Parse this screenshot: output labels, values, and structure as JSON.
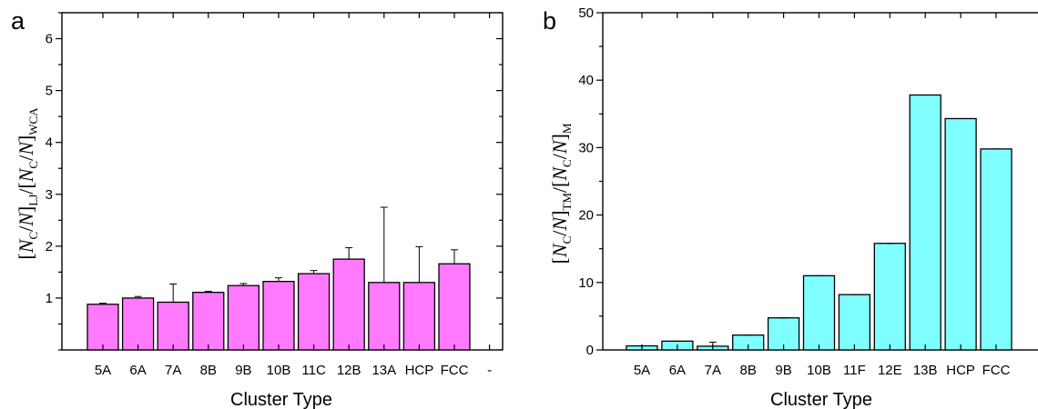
{
  "chart_data": [
    {
      "type": "bar",
      "panel_label": "a",
      "categories": [
        "5A",
        "6A",
        "7A",
        "8B",
        "9B",
        "10B",
        "11C",
        "12B",
        "13A",
        "HCP",
        "FCC"
      ],
      "trailing_tick_label": "-",
      "values": [
        0.88,
        1.0,
        0.92,
        1.11,
        1.24,
        1.32,
        1.47,
        1.75,
        1.3,
        1.3,
        1.66
      ],
      "errors": [
        0.02,
        0.03,
        0.35,
        0.02,
        0.04,
        0.07,
        0.06,
        0.22,
        1.45,
        0.69,
        0.27
      ],
      "ylim": [
        0,
        6.5
      ],
      "yticks": [
        1,
        2,
        3,
        4,
        5,
        6
      ],
      "xlabel": "Cluster Type",
      "ylabel": {
        "pre": "[",
        "n1": "N",
        "sub1": "C",
        "mid1": "/",
        "n2": "N",
        "close1": "]",
        "sub2": "LJ",
        "slash": "/[",
        "n3": "N",
        "sub3": "C",
        "mid2": "/",
        "n4": "N",
        "close2": "]",
        "sub4": "WCA"
      },
      "bar_color": "#ff7aff",
      "grid": false,
      "legend": "none"
    },
    {
      "type": "bar",
      "panel_label": "b",
      "categories": [
        "5A",
        "6A",
        "7A",
        "8B",
        "9B",
        "10B",
        "11F",
        "12E",
        "13B",
        "HCP",
        "FCC"
      ],
      "values": [
        0.6,
        1.3,
        0.55,
        2.2,
        4.75,
        11.0,
        8.2,
        15.8,
        37.8,
        34.3,
        29.8
      ],
      "errors": [
        0,
        0,
        0.6,
        0,
        0,
        0,
        0,
        0,
        0,
        0,
        0
      ],
      "ylim": [
        0,
        50
      ],
      "yticks": [
        0,
        10,
        20,
        30,
        40,
        50
      ],
      "xlabel": "Cluster Type",
      "ylabel": {
        "pre": "[",
        "n1": "N",
        "sub1": "C",
        "mid1": "/",
        "n2": "N",
        "close1": "]",
        "sub2": "TM",
        "slash": "/[",
        "n3": "N",
        "sub3": "C",
        "mid2": "/",
        "n4": "N",
        "close2": "]",
        "sub4": "M"
      },
      "bar_color": "#7fffff",
      "grid": false,
      "legend": "none"
    }
  ]
}
